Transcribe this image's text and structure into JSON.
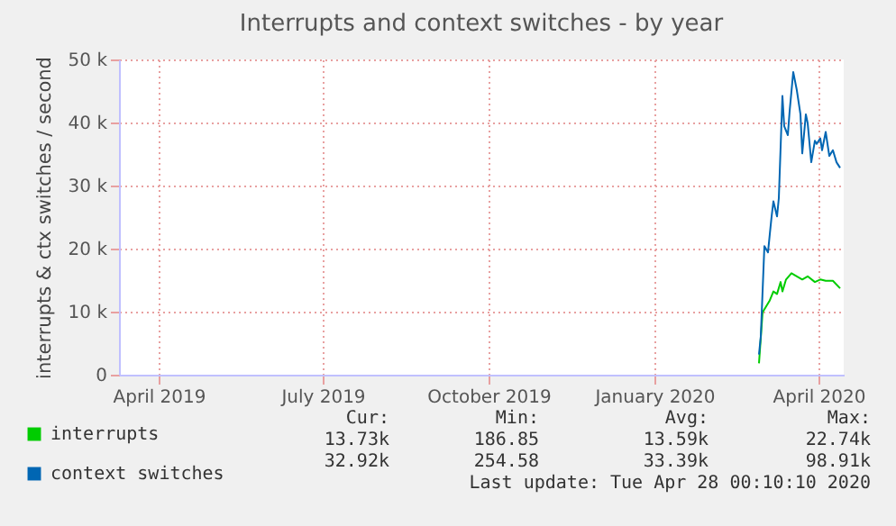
{
  "chart_data": {
    "type": "line",
    "title": "Interrupts and context switches - by year",
    "ylabel": "interrupts & ctx switches / second",
    "xlim": [
      "2019-03-10",
      "2020-04-15"
    ],
    "ylim": [
      0,
      50000
    ],
    "xticks": [
      {
        "value": "2019-04-01",
        "label": "April 2019"
      },
      {
        "value": "2019-07-01",
        "label": "July 2019"
      },
      {
        "value": "2019-10-01",
        "label": "October 2019"
      },
      {
        "value": "2020-01-01",
        "label": "January 2020"
      },
      {
        "value": "2020-04-01",
        "label": "April 2020"
      }
    ],
    "yticks": [
      {
        "value": 0,
        "label": "0"
      },
      {
        "value": 10000,
        "label": "10 k"
      },
      {
        "value": 20000,
        "label": "20 k"
      },
      {
        "value": 30000,
        "label": "30 k"
      },
      {
        "value": 40000,
        "label": "40 k"
      },
      {
        "value": 50000,
        "label": "50 k"
      }
    ],
    "grid": true,
    "legend": "bottom",
    "series": [
      {
        "name": "interrupts",
        "color": "#00cc00",
        "x": [
          "2020-02-28",
          "2020-03-01",
          "2020-03-05",
          "2020-03-07",
          "2020-03-09",
          "2020-03-11",
          "2020-03-12",
          "2020-03-14",
          "2020-03-17",
          "2020-03-20",
          "2020-03-23",
          "2020-03-26",
          "2020-03-30",
          "2020-04-02",
          "2020-04-05",
          "2020-04-09",
          "2020-04-13"
        ],
        "values": [
          1800,
          9900,
          11800,
          13200,
          12800,
          14700,
          13200,
          15100,
          16100,
          15600,
          15100,
          15600,
          14700,
          15100,
          14900,
          14900,
          13700
        ]
      },
      {
        "name": "context switches",
        "color": "#0066b3",
        "x": [
          "2020-02-28",
          "2020-02-29",
          "2020-03-02",
          "2020-03-04",
          "2020-03-05",
          "2020-03-06",
          "2020-03-07",
          "2020-03-09",
          "2020-03-10",
          "2020-03-12",
          "2020-03-13",
          "2020-03-15",
          "2020-03-16",
          "2020-03-18",
          "2020-03-20",
          "2020-03-22",
          "2020-03-23",
          "2020-03-25",
          "2020-03-26",
          "2020-03-28",
          "2020-03-30",
          "2020-03-31",
          "2020-04-02",
          "2020-04-03",
          "2020-04-05",
          "2020-04-07",
          "2020-04-09",
          "2020-04-11",
          "2020-04-13"
        ],
        "values": [
          3200,
          6100,
          20400,
          19400,
          22300,
          25100,
          27500,
          25100,
          28000,
          44200,
          39400,
          38000,
          41800,
          48000,
          45100,
          41300,
          35100,
          41300,
          39900,
          33700,
          37100,
          36600,
          37500,
          35600,
          38500,
          34700,
          35600,
          33700,
          32800
        ]
      }
    ],
    "annotations": [
      "Cur:",
      "Min:",
      "Avg:",
      "Max:",
      "13.73k",
      "186.85",
      "13.59k",
      "22.74k",
      "32.92k",
      "254.58",
      "33.39k",
      "98.91k",
      "Last update: Tue Apr 28 00:10:10 2020"
    ]
  }
}
